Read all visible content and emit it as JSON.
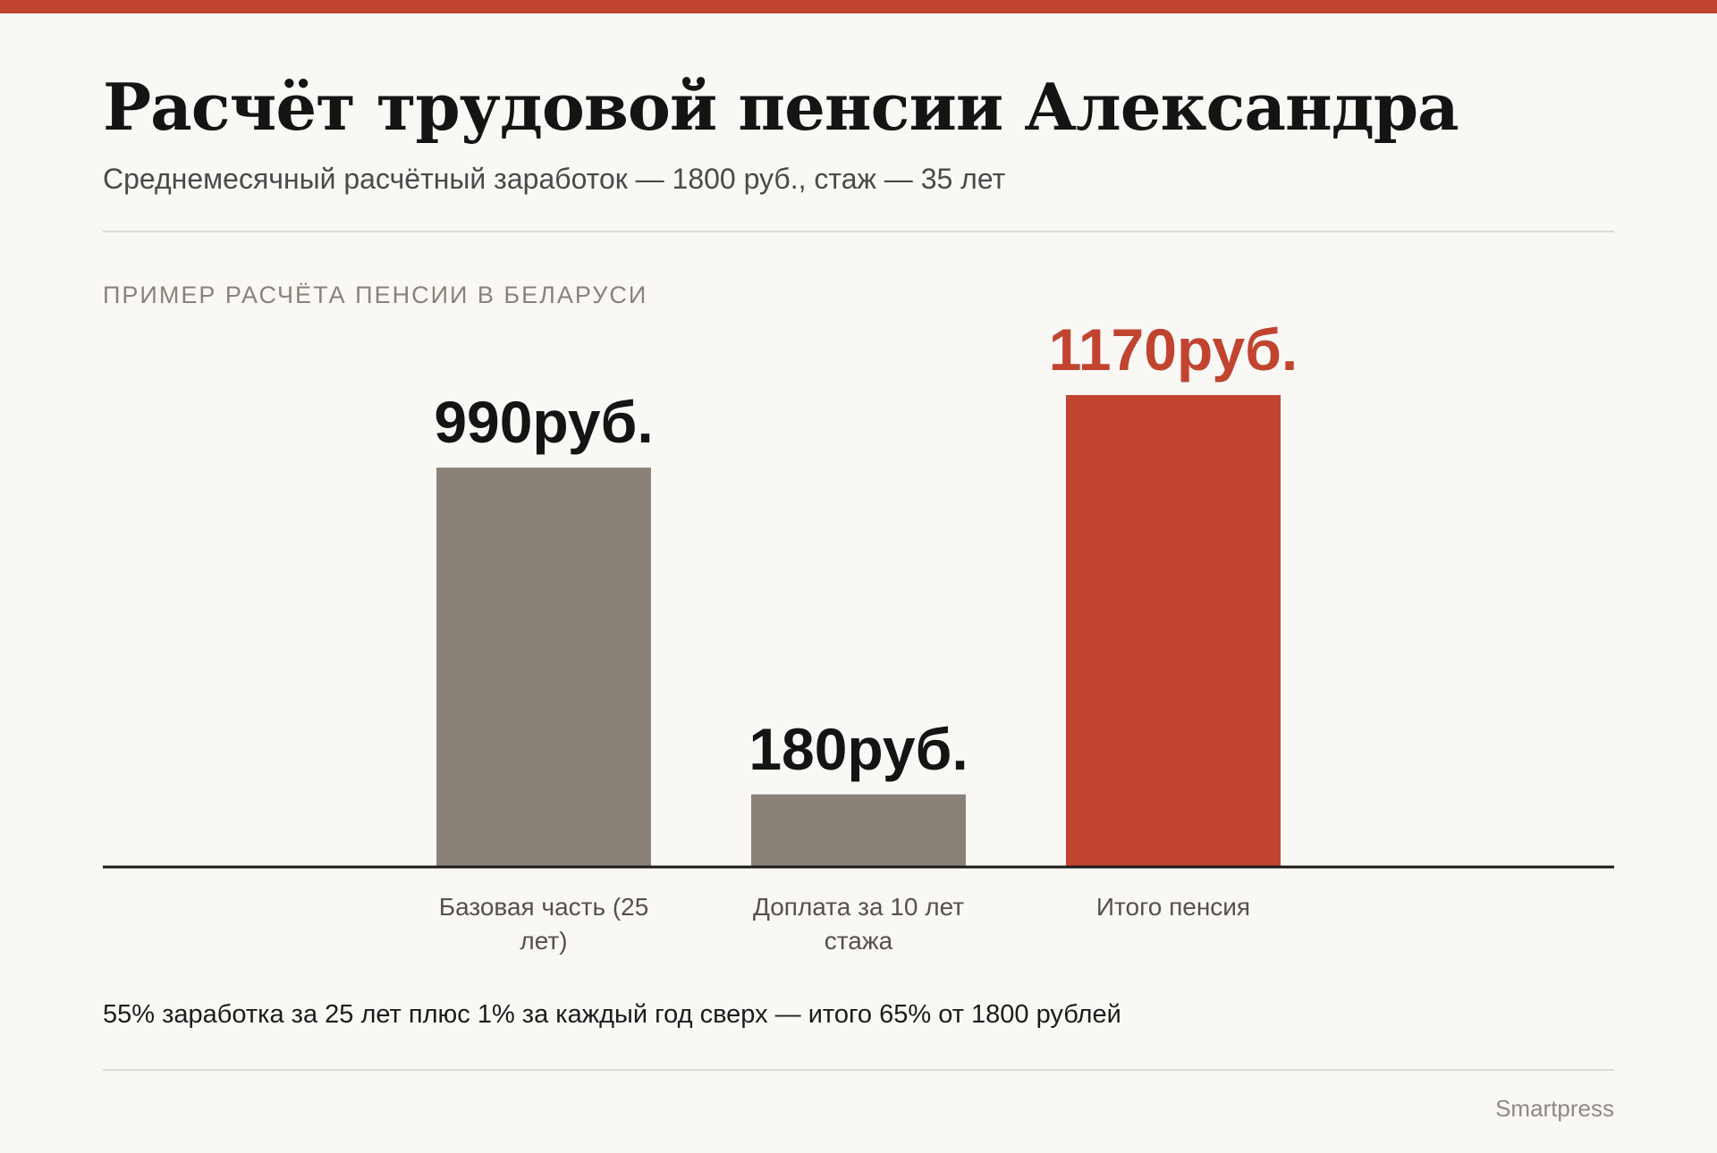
{
  "header": {
    "title": "Расчёт трудовой пенсии Александра",
    "subtitle": "Среднемесячный расчётный заработок — 1800 руб., стаж — 35 лет"
  },
  "chart_kicker": "ПРИМЕР РАСЧЁТА ПЕНСИИ В БЕЛАРУСИ",
  "chart_data": {
    "type": "bar",
    "categories": [
      "Базовая часть (25 лет)",
      "Доплата за 10 лет стажа",
      "Итого пенсия"
    ],
    "category_lines": [
      [
        "Базовая часть (25",
        "лет)"
      ],
      [
        "Доплата за 10 лет",
        "стажа"
      ],
      [
        "Итого пенсия"
      ]
    ],
    "values": [
      990,
      180,
      1170
    ],
    "value_labels": [
      "990руб.",
      "180руб.",
      "1170руб."
    ],
    "highlight_index": 2,
    "grid": false,
    "ylim": [
      0,
      1170
    ]
  },
  "note": "55% заработка за 25 лет плюс 1% за каждый год сверх — итого 65% от 1800 рублей",
  "source": "Smartpress",
  "colors": {
    "accent": "#c14430",
    "bar": "#8a8279",
    "axis": "#1a1a1a",
    "label_dark": "#141414",
    "category_text": "#55514c"
  }
}
